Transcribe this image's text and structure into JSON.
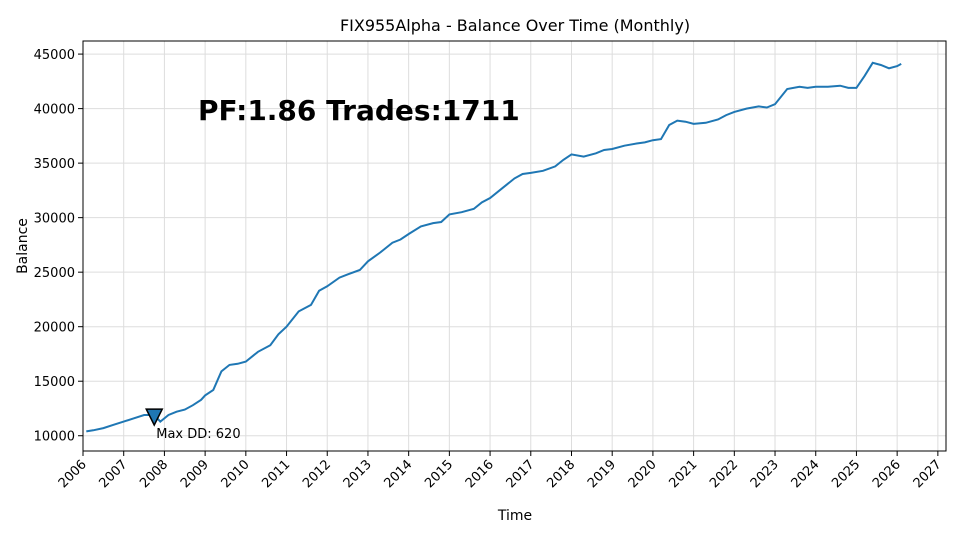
{
  "chart_data": {
    "type": "line",
    "title": "FIX955Alpha - Balance Over Time (Monthly)",
    "xlabel": "Time",
    "ylabel": "Balance",
    "xlim": [
      2006.0,
      2027.2
    ],
    "ylim": [
      8600,
      46200
    ],
    "grid": true,
    "line_color": "#1f77b4",
    "x_ticks": [
      2006,
      2007,
      2008,
      2009,
      2010,
      2011,
      2012,
      2013,
      2014,
      2015,
      2016,
      2017,
      2018,
      2019,
      2020,
      2021,
      2022,
      2023,
      2024,
      2025,
      2026,
      2027
    ],
    "y_ticks": [
      10000,
      15000,
      20000,
      25000,
      30000,
      35000,
      40000,
      45000
    ],
    "stats_text": "PF:1.86  Trades:1711",
    "max_dd": {
      "label": "Max DD: 620",
      "x": 2007.75,
      "y": 11800,
      "marker_color": "#1f77b4"
    },
    "series": [
      {
        "x": [
          2006.08,
          2006.25,
          2006.5,
          2006.75,
          2007.0,
          2007.25,
          2007.5,
          2007.75,
          2007.9,
          2008.1,
          2008.3,
          2008.5,
          2008.7,
          2008.9,
          2009.0,
          2009.2,
          2009.4,
          2009.6,
          2009.8,
          2010.0,
          2010.3,
          2010.6,
          2010.8,
          2011.0,
          2011.3,
          2011.6,
          2011.8,
          2012.0,
          2012.3,
          2012.5,
          2012.8,
          2013.0,
          2013.3,
          2013.6,
          2013.8,
          2014.0,
          2014.3,
          2014.6,
          2014.8,
          2015.0,
          2015.3,
          2015.6,
          2015.8,
          2016.0,
          2016.3,
          2016.6,
          2016.8,
          2017.0,
          2017.3,
          2017.6,
          2017.8,
          2018.0,
          2018.3,
          2018.6,
          2018.8,
          2019.0,
          2019.3,
          2019.6,
          2019.8,
          2020.0,
          2020.2,
          2020.4,
          2020.6,
          2020.8,
          2021.0,
          2021.3,
          2021.6,
          2021.8,
          2022.0,
          2022.3,
          2022.6,
          2022.8,
          2023.0,
          2023.3,
          2023.6,
          2023.8,
          2024.0,
          2024.3,
          2024.6,
          2024.8,
          2025.0,
          2025.2,
          2025.4,
          2025.6,
          2025.8,
          2026.0,
          2026.1
        ],
        "y": [
          10400,
          10500,
          10700,
          11000,
          11300,
          11600,
          11900,
          11900,
          11300,
          11900,
          12200,
          12400,
          12800,
          13300,
          13700,
          14200,
          15900,
          16500,
          16600,
          16800,
          17700,
          18300,
          19300,
          20000,
          21400,
          22000,
          23300,
          23700,
          24500,
          24800,
          25200,
          26000,
          26800,
          27700,
          28000,
          28500,
          29200,
          29500,
          29600,
          30300,
          30500,
          30800,
          31400,
          31800,
          32700,
          33600,
          34000,
          34100,
          34300,
          34700,
          35300,
          35800,
          35600,
          35900,
          36200,
          36300,
          36600,
          36800,
          36900,
          37100,
          37200,
          38500,
          38900,
          38800,
          38600,
          38700,
          39000,
          39400,
          39700,
          40000,
          40200,
          40100,
          40400,
          41800,
          42000,
          41900,
          42000,
          42000,
          42100,
          41900,
          41900,
          43000,
          44200,
          44000,
          43700,
          43900,
          44100
        ]
      }
    ]
  }
}
